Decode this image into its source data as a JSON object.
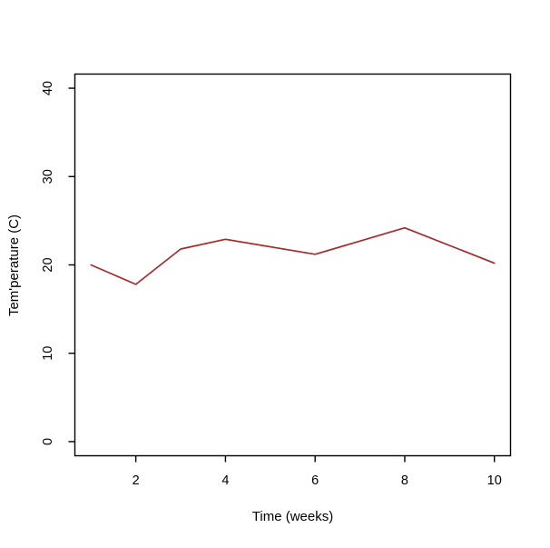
{
  "chart_data": {
    "type": "line",
    "title": "",
    "x": [
      1,
      2,
      3,
      4,
      6,
      8,
      10
    ],
    "y": [
      20.0,
      17.8,
      21.8,
      22.9,
      21.2,
      24.2,
      20.2
    ],
    "xlabel": "Time (weeks)",
    "ylabel": "Tem'perature (C)",
    "xlim": [
      1,
      10
    ],
    "ylim": [
      0,
      40
    ],
    "xticks": [
      2,
      4,
      6,
      8,
      10
    ],
    "yticks": [
      0,
      10,
      20,
      30,
      40
    ],
    "grid": false,
    "legend": "none",
    "line_color": "#A52A2A",
    "axis_color": "#000000",
    "background": "#FFFFFF"
  }
}
